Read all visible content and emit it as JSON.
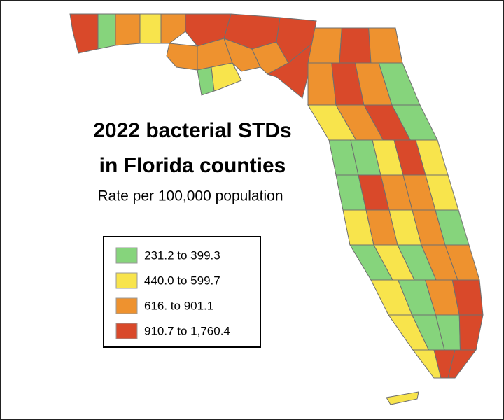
{
  "title_lines": [
    "2022 bacterial STDs",
    "in Florida counties"
  ],
  "subtitle": "Rate per 100,000 population",
  "legend": [
    {
      "label": "231.2 to 399.3",
      "color": "#86d47c"
    },
    {
      "label": "440.0 to 599.7",
      "color": "#f8e44c"
    },
    {
      "label": "616. to 901.1",
      "color": "#ee922f"
    },
    {
      "label": "910.7 to 1,760.4",
      "color": "#d9492a"
    }
  ]
}
